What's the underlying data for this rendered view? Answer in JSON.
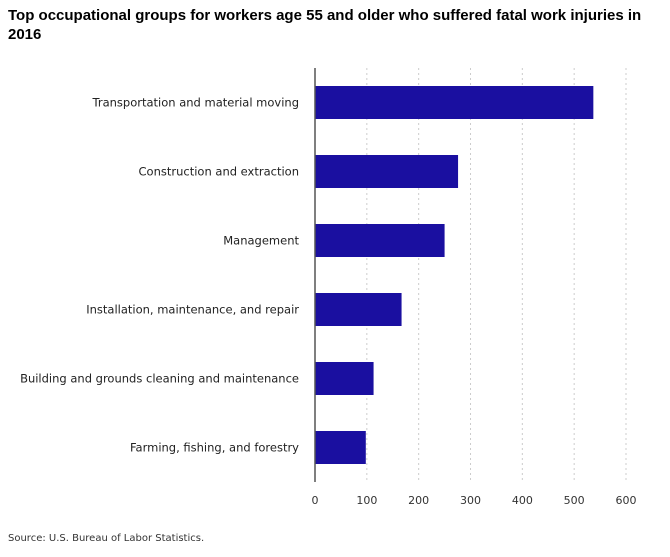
{
  "chart_data": {
    "type": "bar",
    "orientation": "horizontal",
    "title": "Top occupational groups for workers age 55 and older who suffered fatal work injuries in 2016",
    "categories": [
      "Transportation and material moving",
      "Construction and extraction",
      "Management",
      "Installation, maintenance, and repair",
      "Building and grounds cleaning and maintenance",
      "Farming, fishing, and forestry"
    ],
    "values": [
      537,
      276,
      250,
      167,
      113,
      98
    ],
    "xlim": [
      0,
      600
    ],
    "xticks": [
      0,
      100,
      200,
      300,
      400,
      500,
      600
    ],
    "xlabel": "",
    "ylabel": "",
    "grid": "vertical dotted",
    "bar_color": "#1a0fa0",
    "source": "Source: U.S. Bureau of Labor Statistics."
  }
}
